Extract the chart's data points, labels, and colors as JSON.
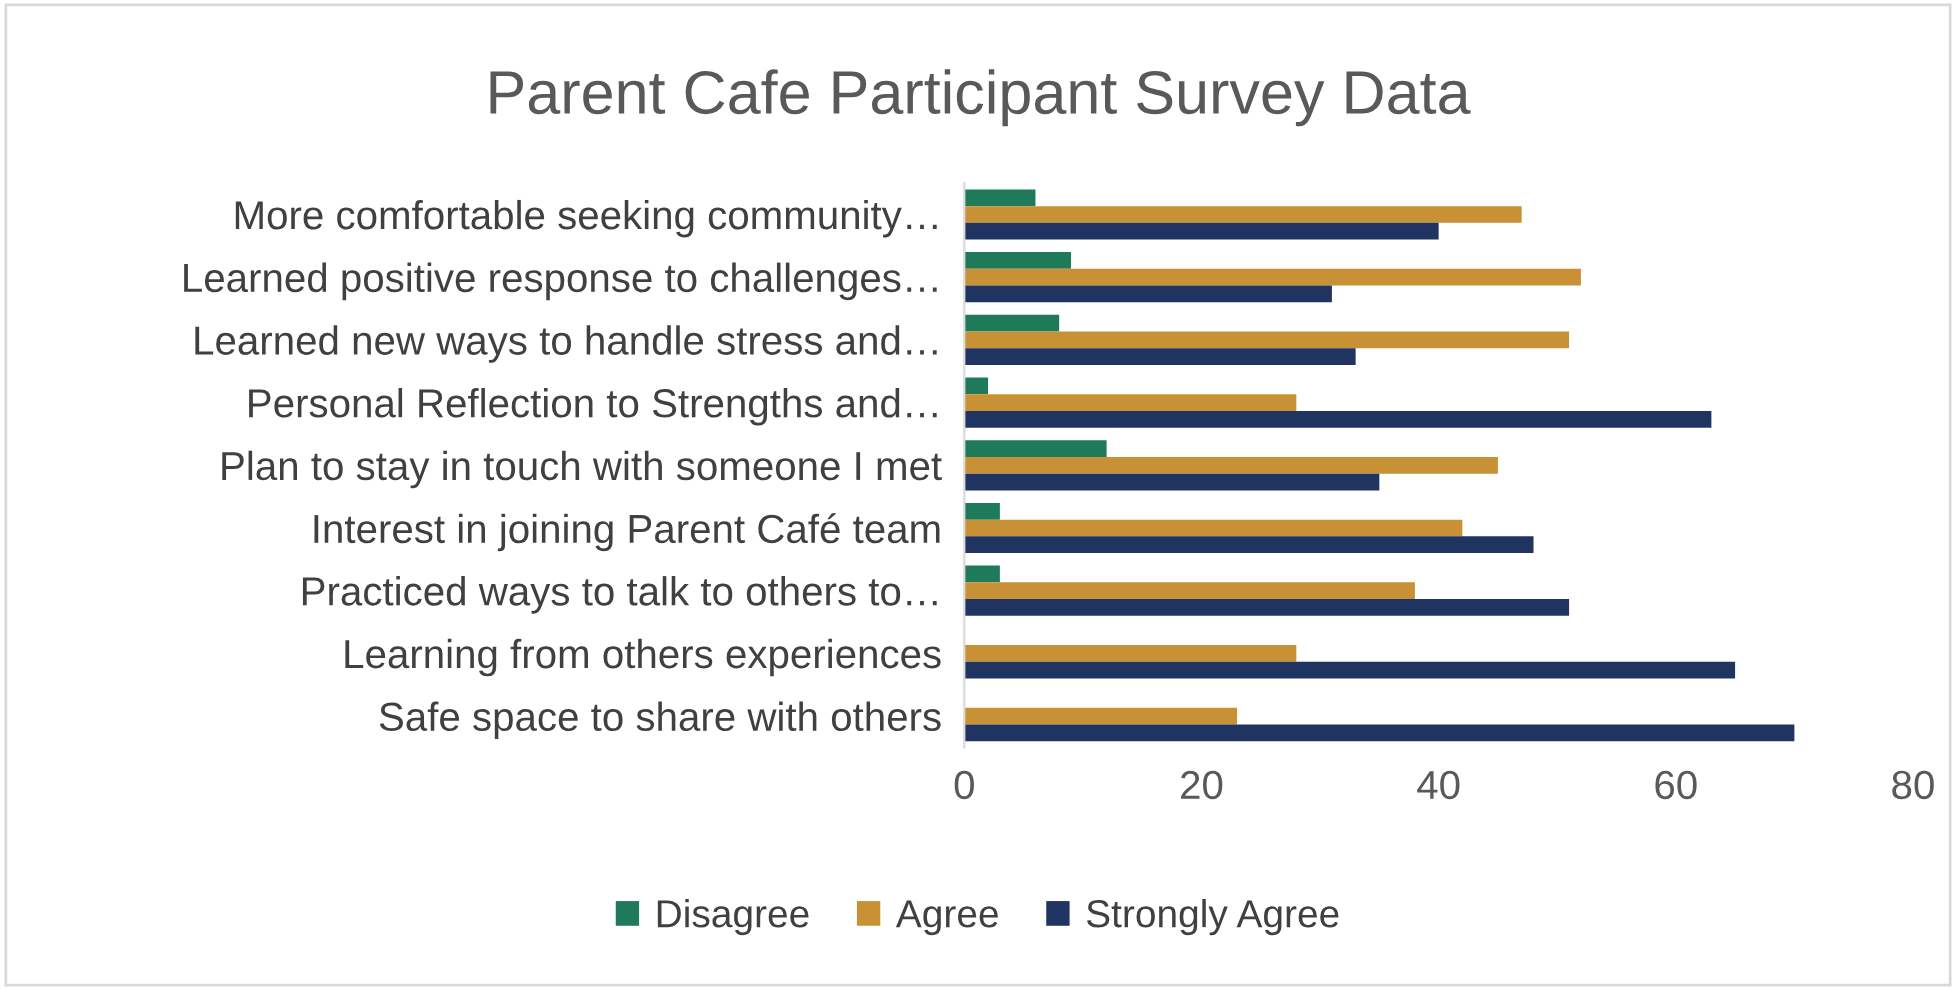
{
  "chart_data": {
    "type": "bar",
    "orientation": "horizontal",
    "title": "Parent Cafe Participant Survey Data",
    "categories": [
      "More comfortable seeking community…",
      "Learned positive response to challenges…",
      "Learned new ways to handle stress and…",
      "Personal Reflection to Strengths and…",
      "Plan to stay in touch with someone I met",
      "Interest in joining Parent Café team",
      "Practiced ways to talk to others to…",
      "Learning from others experiences",
      "Safe space to share with others"
    ],
    "series": [
      {
        "name": "Disagree",
        "color": "#1f7a5a",
        "values": [
          6,
          9,
          8,
          2,
          12,
          3,
          3,
          0,
          0
        ]
      },
      {
        "name": "Agree",
        "color": "#c99135",
        "values": [
          47,
          52,
          51,
          28,
          45,
          42,
          38,
          28,
          23
        ]
      },
      {
        "name": "Strongly Agree",
        "color": "#1f3461",
        "values": [
          40,
          31,
          33,
          63,
          35,
          48,
          51,
          65,
          70
        ]
      }
    ],
    "xlim": [
      0,
      80
    ],
    "xticks": [
      0,
      20,
      40,
      60,
      80
    ],
    "grid": false,
    "legend": "bottom"
  }
}
